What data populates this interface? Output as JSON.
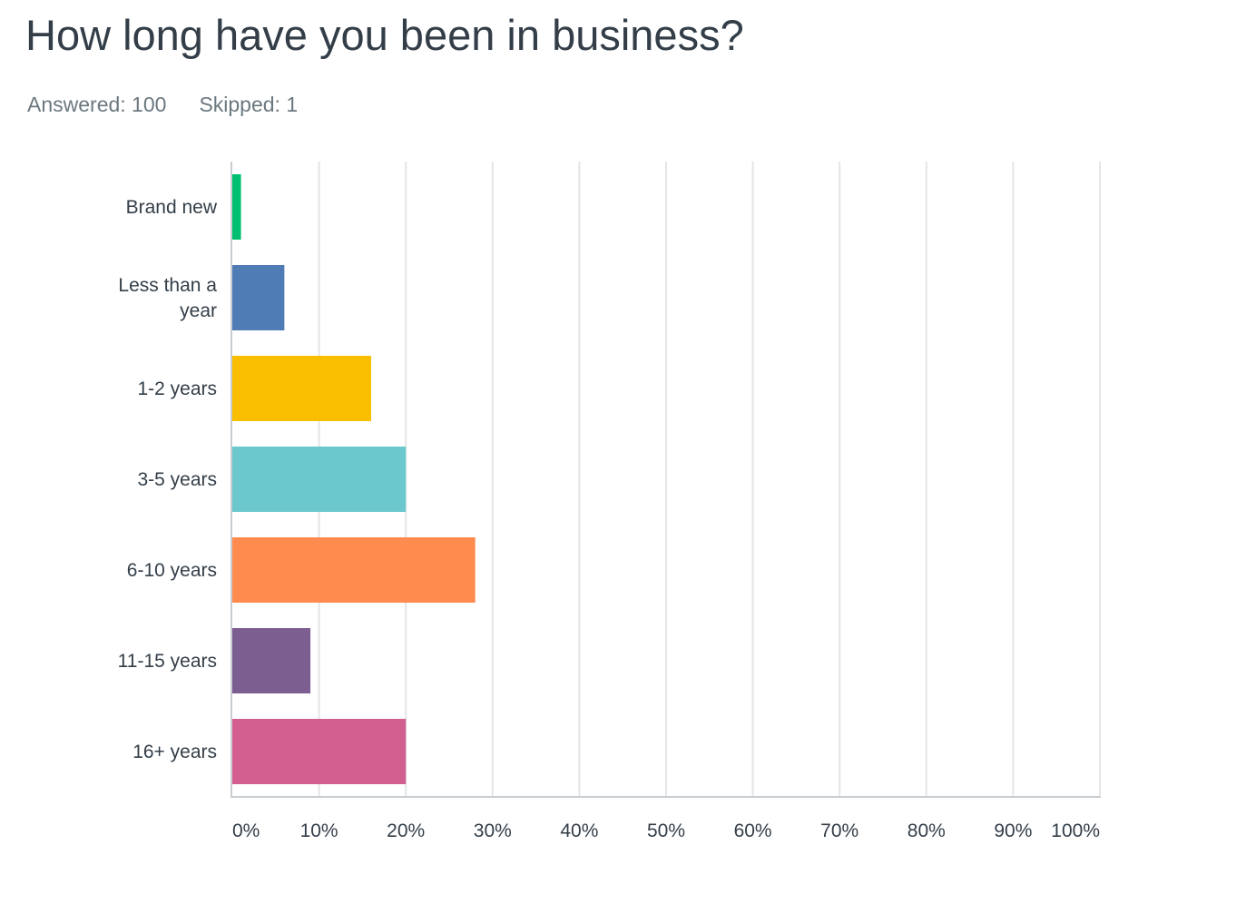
{
  "question": {
    "title": "How long have you been in business?",
    "answered_label": "Answered: 100",
    "skipped_label": "Skipped: 1"
  },
  "chart_data": {
    "type": "bar",
    "orientation": "horizontal",
    "categories": [
      [
        "Brand new"
      ],
      [
        "Less than a",
        "year"
      ],
      [
        "1-2 years"
      ],
      [
        "3-5 years"
      ],
      [
        "6-10 years"
      ],
      [
        "11-15 years"
      ],
      [
        "16+ years"
      ]
    ],
    "values": [
      1,
      6,
      16,
      20,
      28,
      9,
      20
    ],
    "colors": [
      "#00bf6f",
      "#507cb6",
      "#f9be00",
      "#6bc8cd",
      "#ff8b4f",
      "#7d5e90",
      "#d25f90"
    ],
    "x_ticks": [
      "0%",
      "10%",
      "20%",
      "30%",
      "40%",
      "50%",
      "60%",
      "70%",
      "80%",
      "90%",
      "100%"
    ],
    "xlim": [
      0,
      100
    ],
    "grid": true,
    "legend": "none",
    "title": "",
    "xlabel": "",
    "ylabel": ""
  }
}
